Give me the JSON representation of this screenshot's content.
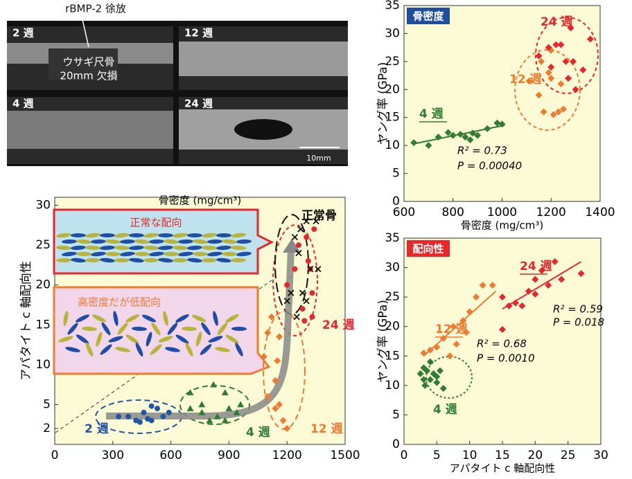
{
  "image_panel": {
    "label_top": "rBMP-2 徐放",
    "panels": [
      "2 週",
      "12 週",
      "4 週",
      "24 週"
    ],
    "defect_line1": "ウサギ尺骨",
    "defect_line2": "20mm 欠損",
    "scale_bar": "10mm"
  },
  "chart_data": [
    {
      "type": "scatter",
      "badge": "骨密度",
      "badge_color": "#1f4e9e",
      "x_label": "骨密度 (mg/cm³)",
      "y_label": "ヤング率 (GPa)",
      "xlim": [
        600,
        1400
      ],
      "xticks": [
        600,
        800,
        1000,
        1200,
        1400
      ],
      "ylim": [
        0,
        35
      ],
      "yticks": [
        0,
        5,
        10,
        15,
        20,
        25,
        30,
        35
      ],
      "series": [
        {
          "name": "4 週",
          "color": "#2e7d32",
          "marker": "diamond",
          "x": [
            640,
            700,
            740,
            780,
            800,
            830,
            850,
            870,
            880,
            900,
            940,
            980,
            1000
          ],
          "values": [
            10.5,
            10,
            11.5,
            12.3,
            11.8,
            12,
            11.5,
            11,
            12.2,
            11.8,
            13,
            14,
            13.8
          ]
        },
        {
          "name": "12 週",
          "color": "#f07a2e",
          "marker": "diamond",
          "x": [
            1110,
            1150,
            1160,
            1170,
            1190,
            1200,
            1200,
            1210,
            1230,
            1240,
            1250
          ],
          "values": [
            21.5,
            19,
            25,
            16,
            23,
            27,
            22,
            15.5,
            16,
            21,
            16.5
          ]
        },
        {
          "name": "24 週",
          "color": "#e8262b",
          "marker": "diamond",
          "x": [
            1150,
            1190,
            1200,
            1220,
            1240,
            1260,
            1270,
            1280,
            1290,
            1300,
            1330,
            1360
          ],
          "values": [
            26,
            27.5,
            24,
            28,
            28,
            25,
            22,
            31,
            25,
            20,
            23.5,
            29
          ]
        }
      ],
      "fits": [
        {
          "color": "#2e7d32",
          "x": [
            640,
            1010
          ],
          "y": [
            10.3,
            13.6
          ]
        }
      ],
      "annotations": [
        "R² = 0.73",
        "P = 0.00040"
      ]
    },
    {
      "type": "scatter",
      "badge": "配向性",
      "badge_color": "#e8262b",
      "x_label": "アパタイト c 軸配向性",
      "y_label": "ヤング率 (GPa)",
      "xlim": [
        0,
        30
      ],
      "xticks": [
        0,
        5,
        10,
        15,
        20,
        25,
        30
      ],
      "ylim": [
        0,
        35
      ],
      "yticks": [
        0,
        5,
        10,
        15,
        20,
        25,
        30,
        35
      ],
      "series": [
        {
          "name": "4 週",
          "color": "#2e7d32",
          "marker": "diamond",
          "x": [
            2.5,
            3,
            3,
            3.2,
            3.5,
            4,
            4,
            4.5,
            5,
            5,
            5.5,
            6
          ],
          "values": [
            12,
            11,
            13,
            10,
            12.5,
            11,
            14,
            12,
            10.5,
            11.5,
            12.5,
            9.5
          ]
        },
        {
          "name": "12 週",
          "color": "#f07a2e",
          "marker": "diamond",
          "x": [
            3,
            4,
            5,
            6,
            7,
            7.5,
            8,
            9,
            9.5,
            10,
            11,
            12,
            13.5
          ],
          "values": [
            15.5,
            16,
            16.5,
            18,
            15,
            20,
            17,
            21,
            19,
            22.5,
            25,
            27,
            27
          ]
        },
        {
          "name": "24 週",
          "color": "#e8262b",
          "marker": "diamond",
          "x": [
            15,
            15,
            16,
            17,
            18,
            19,
            20,
            20,
            21,
            22,
            23,
            24,
            27
          ],
          "values": [
            25,
            19.5,
            23.5,
            24,
            23.5,
            26,
            28,
            25.5,
            29.5,
            27,
            31,
            28,
            29
          ]
        }
      ],
      "fits": [
        {
          "color": "#f07a2e",
          "x": [
            3,
            14
          ],
          "y": [
            15,
            26
          ]
        },
        {
          "color": "#e8262b",
          "x": [
            15,
            27
          ],
          "y": [
            23,
            31
          ]
        }
      ],
      "annotations": [
        "R² = 0.68",
        "P = 0.0010",
        "R² = 0.59",
        "P = 0.018"
      ]
    },
    {
      "type": "scatter",
      "x_label": "骨密度 (mg/cm³)",
      "y_label": "アパタイト c 軸配向性",
      "xlim": [
        0,
        1500
      ],
      "xticks": [
        0,
        300,
        600,
        900,
        1200,
        1500
      ],
      "ylim": [
        0,
        31
      ],
      "yticks": [
        2,
        5,
        10,
        15,
        20,
        25,
        30
      ],
      "series": [
        {
          "name": "2 週",
          "color": "#2155a6",
          "marker": "circle",
          "x": [
            330,
            380,
            420,
            440,
            460,
            480,
            500,
            500,
            530,
            560,
            590
          ],
          "values": [
            3.5,
            3.5,
            3,
            2.8,
            4,
            3.2,
            3,
            4.8,
            4.5,
            3.5,
            4
          ]
        },
        {
          "name": "4 週",
          "color": "#2e7d32",
          "marker": "triangle",
          "x": [
            700,
            700,
            760,
            760,
            800,
            820,
            840,
            880,
            880,
            900,
            940,
            960
          ],
          "values": [
            4.5,
            6.5,
            4,
            5,
            3,
            7.5,
            3.5,
            3,
            6.5,
            4.5,
            4,
            5
          ]
        },
        {
          "name": "12 週",
          "color": "#f07a2e",
          "marker": "diamond",
          "x": [
            1080,
            1100,
            1100,
            1120,
            1140,
            1140,
            1150,
            1160,
            1160,
            1180,
            1200
          ],
          "values": [
            11,
            6,
            14,
            16,
            8,
            4.5,
            10.5,
            5,
            13.5,
            3,
            2
          ]
        },
        {
          "name": "24 週",
          "color": "#e8262b",
          "marker": "circle",
          "x": [
            1200,
            1240,
            1260,
            1280,
            1290,
            1300,
            1310,
            1320,
            1330,
            1330,
            1340
          ],
          "values": [
            20,
            22,
            25,
            17,
            15.5,
            26,
            23,
            22,
            19,
            16,
            27
          ]
        },
        {
          "name": "正常骨",
          "color": "#111111",
          "marker": "x",
          "x": [
            1200,
            1220,
            1240,
            1250,
            1260,
            1270,
            1280,
            1300,
            1300,
            1320,
            1350,
            1360
          ],
          "values": [
            18,
            19,
            26,
            16,
            24,
            27,
            19,
            28,
            18,
            22,
            28,
            22
          ]
        }
      ],
      "insets": [
        "正常な配向",
        "高密度だが低配向"
      ]
    }
  ]
}
